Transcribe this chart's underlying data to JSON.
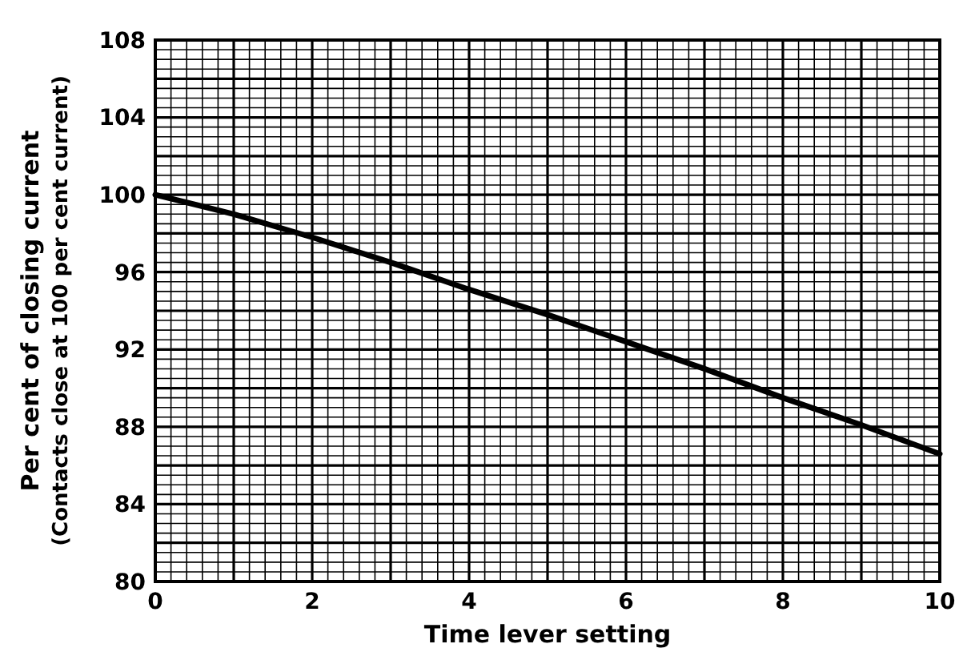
{
  "chart_data": {
    "type": "line",
    "xlabel": "Time lever setting",
    "ylabel": "Per cent of closing current\n(Contacts close at 100 per cent current)",
    "x": [
      0,
      1,
      2,
      3,
      4,
      5,
      6,
      7,
      8,
      9,
      10
    ],
    "series": [
      {
        "color": "#000000",
        "values": [
          100,
          99.0,
          97.8,
          96.5,
          95.1,
          93.8,
          92.4,
          91.0,
          89.5,
          88.1,
          86.6
        ]
      }
    ],
    "xlim": [
      0,
      10
    ],
    "xticks": [
      0,
      2,
      4,
      6,
      8,
      10
    ],
    "ylim": [
      80,
      108
    ],
    "yticks": [
      80,
      84,
      88,
      92,
      96,
      100,
      104,
      108
    ],
    "grid": true,
    "marker": "none",
    "line_style": "solid"
  }
}
